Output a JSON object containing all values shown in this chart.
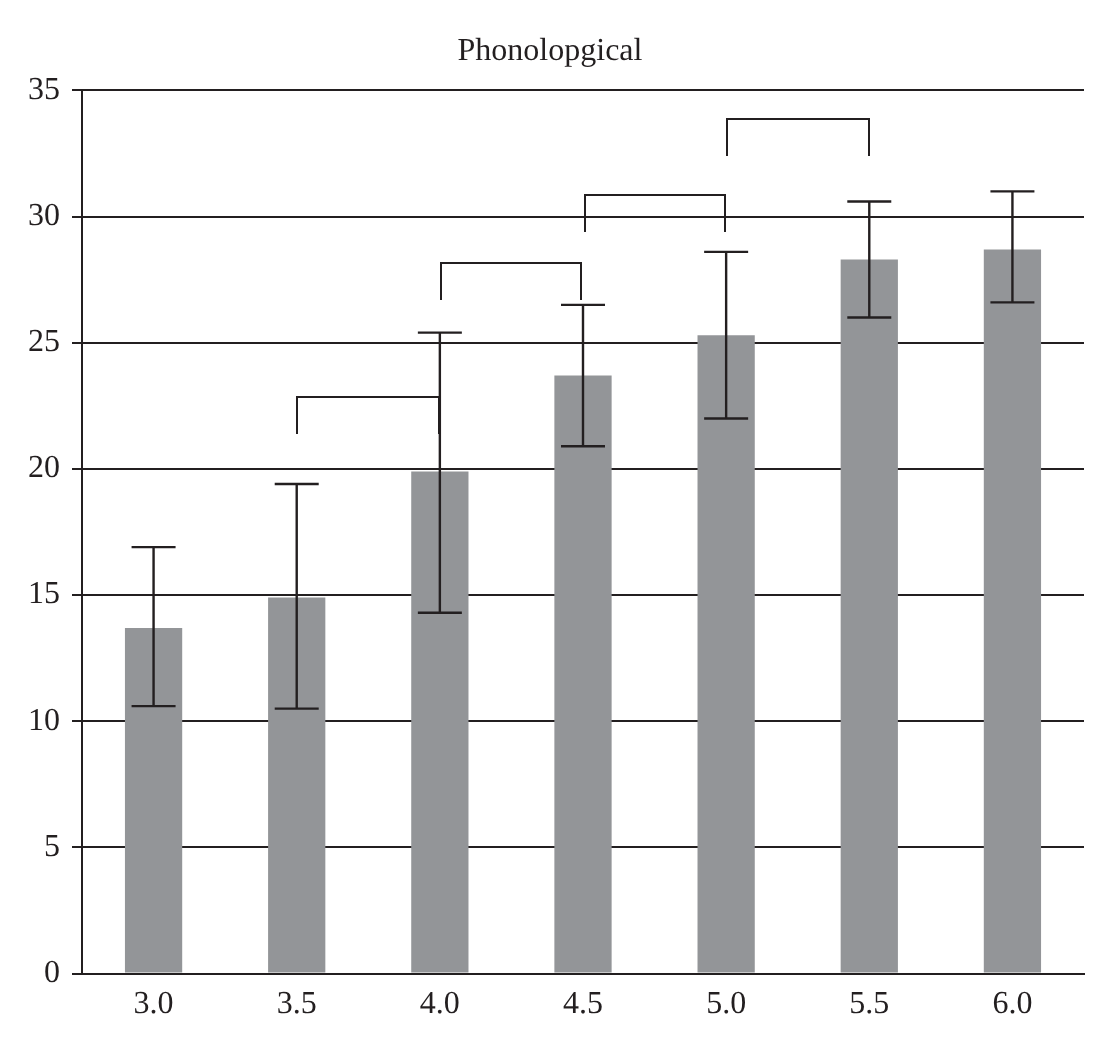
{
  "chart_data": {
    "type": "bar",
    "title": "Phonolopgical",
    "categories": [
      "3.0",
      "3.5",
      "4.0",
      "4.5",
      "5.0",
      "5.5",
      "6.0"
    ],
    "values": [
      13.7,
      14.9,
      19.9,
      23.7,
      25.3,
      28.3,
      28.7
    ],
    "errors": [
      [
        10.6,
        16.9
      ],
      [
        10.5,
        19.4
      ],
      [
        14.3,
        25.4
      ],
      [
        20.9,
        26.5
      ],
      [
        22.0,
        28.6
      ],
      [
        26.0,
        30.6
      ],
      [
        26.6,
        31.0
      ]
    ],
    "color": "#939598",
    "ylim": [
      0,
      35
    ],
    "yticks": [
      0,
      5,
      10,
      15,
      20,
      25,
      30,
      35
    ],
    "grid": "y",
    "legend": false
  }
}
